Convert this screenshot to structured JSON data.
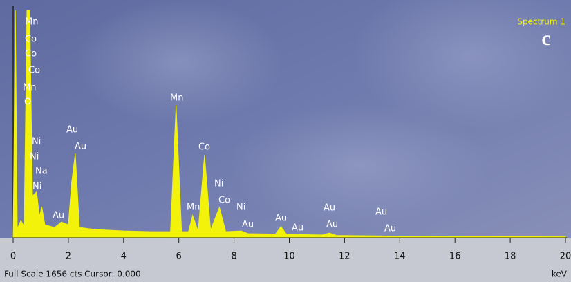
{
  "chart_data": {
    "type": "area",
    "title": "Spectrum 1",
    "panel_label": "c",
    "footer": "Full Scale 1656 cts Cursor: 0.000",
    "x_label": "keV",
    "color": "#f2f20a",
    "x": [
      0,
      0.08,
      0.15,
      0.28,
      0.4,
      0.5,
      0.6,
      0.7,
      0.85,
      0.95,
      1.04,
      1.15,
      1.5,
      1.75,
      2.0,
      2.12,
      2.25,
      2.4,
      3.0,
      4.0,
      5.0,
      5.7,
      5.9,
      6.1,
      6.35,
      6.5,
      6.7,
      6.93,
      7.15,
      7.47,
      7.7,
      8.26,
      8.5,
      9.5,
      9.7,
      9.9,
      11.2,
      11.45,
      11.7,
      13.4,
      14.0,
      16,
      20
    ],
    "values": [
      0,
      1656,
      60,
      120,
      80,
      1656,
      1656,
      300,
      330,
      150,
      220,
      90,
      70,
      110,
      90,
      400,
      611,
      70,
      55,
      45,
      40,
      40,
      964,
      40,
      40,
      157,
      40,
      601,
      50,
      217,
      40,
      45,
      25,
      22,
      76,
      20,
      15,
      30,
      12,
      8,
      5,
      3,
      2
    ],
    "xlim": [
      0,
      20
    ],
    "ylim": [
      0,
      1656
    ],
    "xticks": [
      0,
      2,
      4,
      6,
      8,
      10,
      12,
      14,
      16,
      18,
      20
    ],
    "annotations": [
      "Mn",
      "Co",
      "Co",
      "Co",
      "Mn",
      "O",
      "Ni",
      "Ni",
      "Na",
      "Ni",
      "Au",
      "Au",
      "Au",
      "Mn",
      "Co",
      "Ni",
      "Mn",
      "Co",
      "Ni",
      "Au",
      "Au",
      "Au",
      "Au",
      "Au",
      "Au",
      "Au"
    ]
  }
}
